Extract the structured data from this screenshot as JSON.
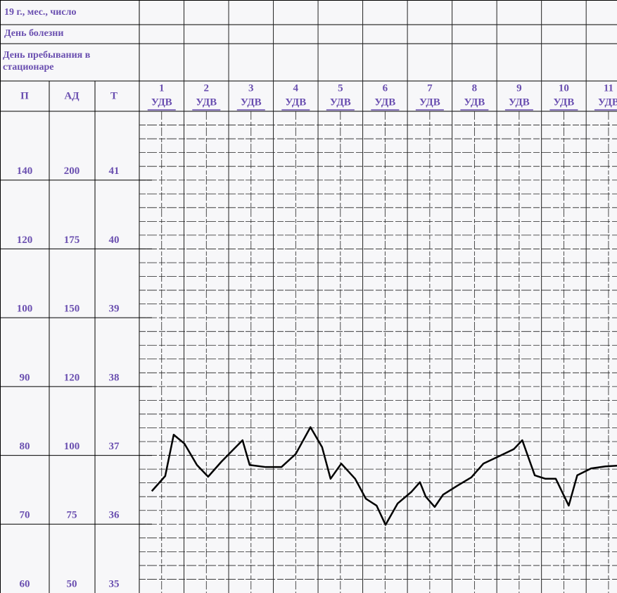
{
  "chart_data": {
    "type": "line",
    "header": {
      "date_row": "19  г., мес., число",
      "illness_day": "День болезни",
      "stay_day": "День пребывания в стационаре"
    },
    "column_labels": {
      "pulse": "П",
      "pressure": "АД",
      "temperature": "Т"
    },
    "days": [
      "1",
      "2",
      "3",
      "4",
      "5",
      "6",
      "7",
      "8",
      "9",
      "10",
      "11"
    ],
    "day_sublabel": "УДВ",
    "xlim": [
      1,
      11.69
    ],
    "ylim": [
      35,
      42
    ],
    "yticks": [
      35,
      36,
      37,
      38,
      39,
      40,
      41
    ],
    "pulse_labels": [
      60,
      70,
      80,
      90,
      100,
      120,
      140
    ],
    "pressure_labels": [
      50,
      75,
      100,
      120,
      150,
      175,
      200
    ],
    "grid": true,
    "series": [
      {
        "color": "#000000",
        "x": [
          1.28,
          1.58,
          1.77,
          2.01,
          2.29,
          2.54,
          2.84,
          3.31,
          3.47,
          3.83,
          4.18,
          4.5,
          4.83,
          5.09,
          5.28,
          5.52,
          5.83,
          6.07,
          6.31,
          6.51,
          6.78,
          7.09,
          7.28,
          7.41,
          7.61,
          7.8,
          8.12,
          8.43,
          8.7,
          9.06,
          9.38,
          9.57,
          9.85,
          10.09,
          10.32,
          10.61,
          10.8,
          11.11,
          11.43,
          11.69
        ],
        "values": [
          36.48,
          36.7,
          37.3,
          37.17,
          36.86,
          36.69,
          36.91,
          37.22,
          36.86,
          36.83,
          36.83,
          37.02,
          37.41,
          37.12,
          36.66,
          36.88,
          36.66,
          36.37,
          36.27,
          35.99,
          36.3,
          36.47,
          36.61,
          36.4,
          36.25,
          36.43,
          36.56,
          36.68,
          36.88,
          36.99,
          37.09,
          37.22,
          36.71,
          36.66,
          36.66,
          36.27,
          36.71,
          36.81,
          36.84,
          36.85
        ]
      }
    ]
  }
}
